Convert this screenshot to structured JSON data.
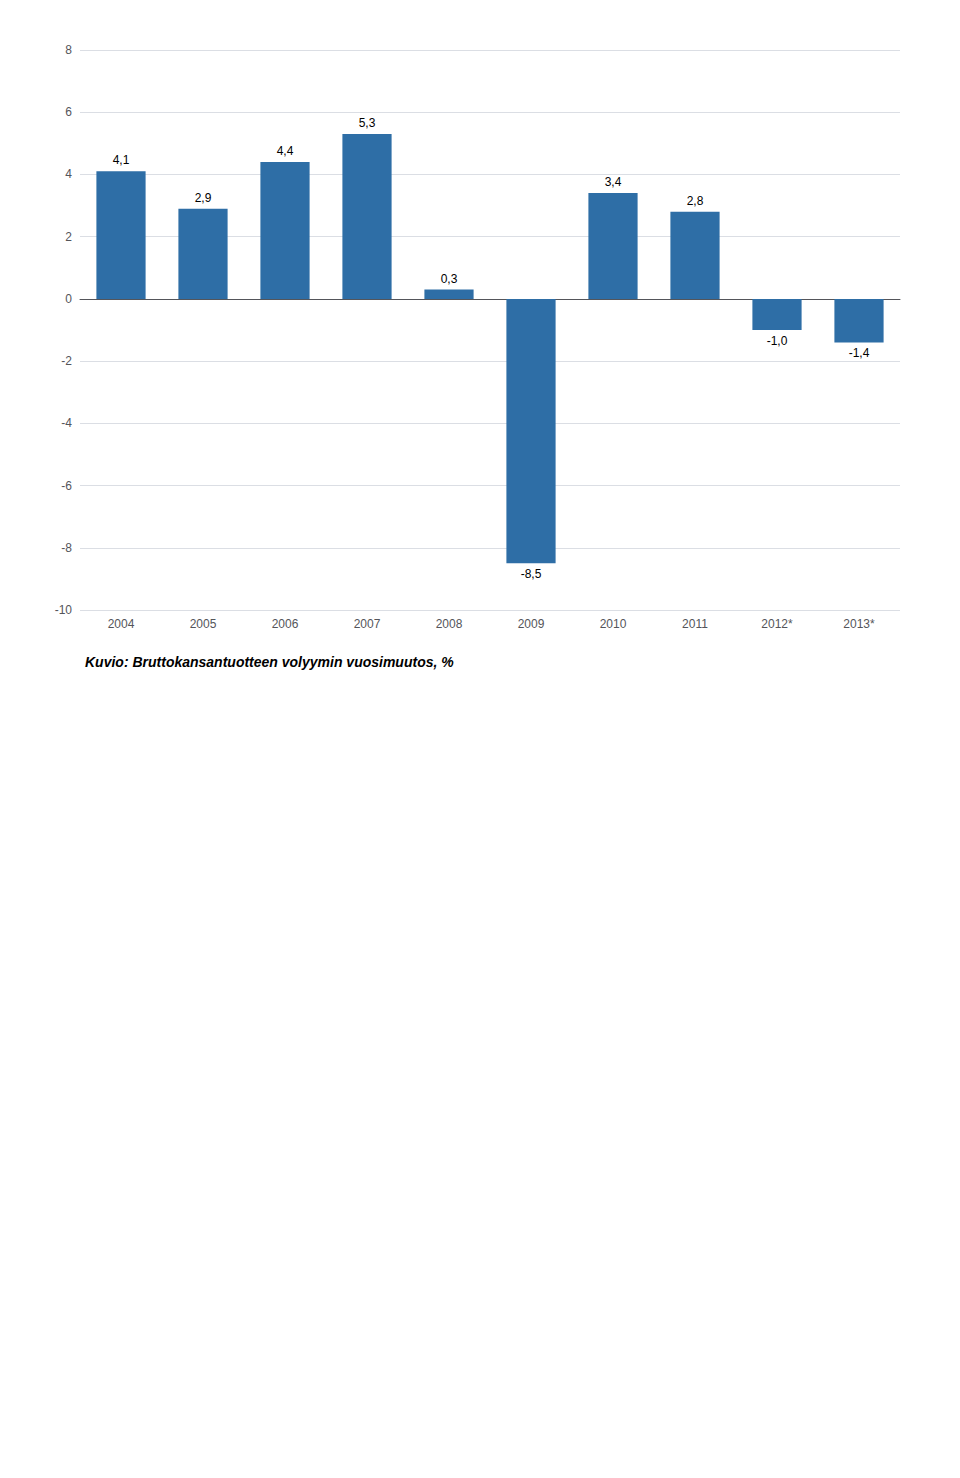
{
  "chart_data": {
    "type": "bar",
    "title": "Kuvio: Bruttokansantuotteen volyymin vuosimuutos, %",
    "categories": [
      "2004",
      "2005",
      "2006",
      "2007",
      "2008",
      "2009",
      "2010",
      "2011",
      "2012*",
      "2013*"
    ],
    "values": [
      4.1,
      2.9,
      4.4,
      5.3,
      0.3,
      -8.5,
      3.4,
      2.8,
      -1.0,
      -1.4
    ],
    "value_labels": [
      "4,1",
      "2,9",
      "4,4",
      "5,3",
      "0,3",
      "-8,5",
      "3,4",
      "2,8",
      "-1,0",
      "-1,4"
    ],
    "data_labels": true,
    "color": "#2E6EA6",
    "ylim": [
      -10,
      8
    ],
    "yticks": [
      -10,
      -8,
      -6,
      -4,
      -2,
      0,
      2,
      4,
      6,
      8
    ],
    "grid": true
  }
}
